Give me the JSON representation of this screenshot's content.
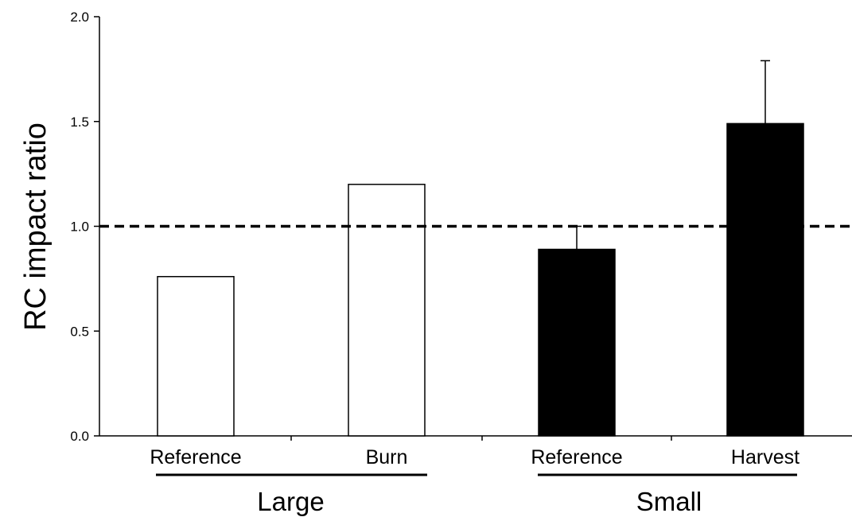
{
  "chart_data": {
    "type": "bar",
    "ylabel": "RC impact ratio",
    "ylim": [
      0,
      2.0
    ],
    "yticks": [
      0.0,
      0.5,
      1.0,
      1.5,
      2.0
    ],
    "ytick_labels": [
      "0.0",
      "0.5",
      "1.0",
      "1.5",
      "2.0"
    ],
    "categories": [
      "Reference",
      "Burn",
      "Reference",
      "Harvest"
    ],
    "values": [
      0.76,
      1.2,
      0.89,
      1.49
    ],
    "error_upper": [
      null,
      null,
      1.0,
      1.79
    ],
    "fill_colors": [
      "#ffffff",
      "#ffffff",
      "#000000",
      "#000000"
    ],
    "groups": [
      {
        "name": "Large",
        "categories": [
          0,
          1
        ]
      },
      {
        "name": "Small",
        "categories": [
          2,
          3
        ]
      }
    ],
    "reference_line": {
      "value": 1.0,
      "style": "dashed"
    },
    "grid": false,
    "legend": "none"
  }
}
